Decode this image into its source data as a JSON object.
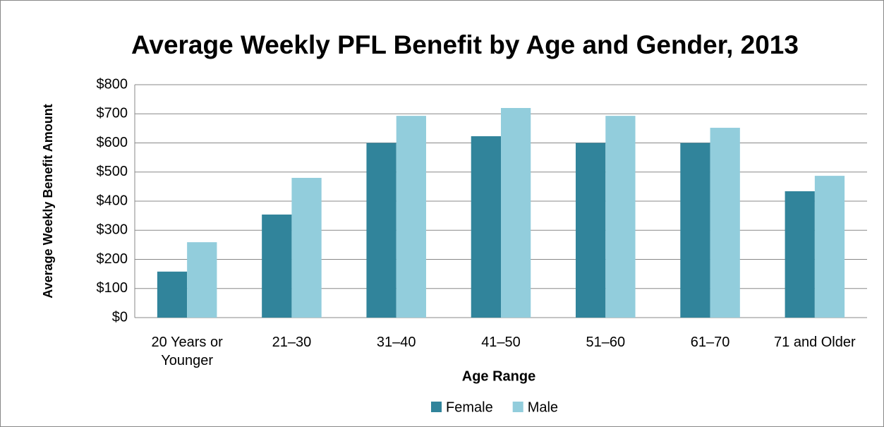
{
  "chart_data": {
    "type": "bar",
    "title": "Average Weekly PFL Benefit by Age and Gender, 2013",
    "x_label": "Age Range",
    "y_label": "Average Weekly Benefit Amount",
    "categories": [
      "20 Years or Younger",
      "21–30",
      "31–40",
      "41–50",
      "51–60",
      "61–70",
      "71 and Older"
    ],
    "series": [
      {
        "name": "Female",
        "color": "#31849b",
        "values": [
          158,
          354,
          600,
          623,
          600,
          600,
          434
        ]
      },
      {
        "name": "Male",
        "color": "#92cddc",
        "values": [
          259,
          480,
          693,
          720,
          693,
          652,
          487
        ]
      }
    ],
    "ylim": [
      0,
      800
    ],
    "yticks": [
      {
        "value": 0,
        "label": "$0"
      },
      {
        "value": 100,
        "label": "$100"
      },
      {
        "value": 200,
        "label": "$200"
      },
      {
        "value": 300,
        "label": "$300"
      },
      {
        "value": 400,
        "label": "$400"
      },
      {
        "value": 500,
        "label": "$500"
      },
      {
        "value": 600,
        "label": "$600"
      },
      {
        "value": 700,
        "label": "$700"
      },
      {
        "value": 800,
        "label": "$800"
      }
    ],
    "grid": true,
    "legend": "bottom"
  }
}
